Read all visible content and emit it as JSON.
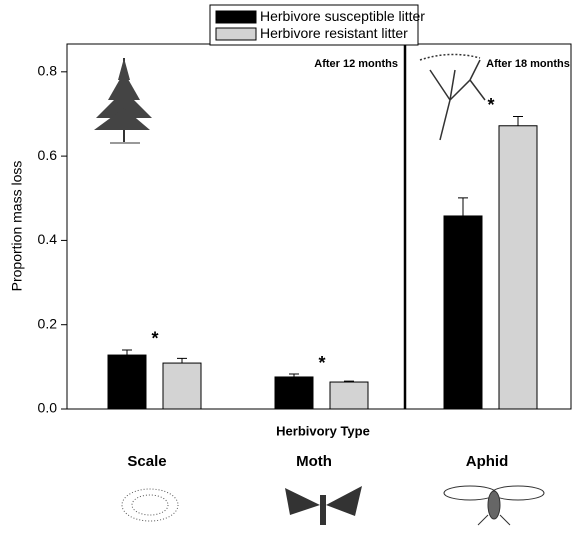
{
  "chart_data": {
    "type": "bar",
    "y_label": "Proportion mass loss",
    "x_label": "Herbivory Type",
    "categories": [
      "Scale",
      "Moth",
      "Aphid"
    ],
    "series": [
      {
        "name": "Herbivore susceptible litter",
        "color": "#000000",
        "values": [
          0.128,
          0.076,
          0.458
        ],
        "errors": [
          0.012,
          0.007,
          0.043
        ]
      },
      {
        "name": "Herbivore resistant litter",
        "color": "#d3d3d3",
        "values": [
          0.109,
          0.064,
          0.672
        ],
        "errors": [
          0.011,
          0.002,
          0.022
        ]
      }
    ],
    "significance_marks": [
      "*",
      "*",
      "*"
    ],
    "annotations": [
      "After 12 months",
      "After 18 months"
    ],
    "ylim": [
      0,
      0.866
    ],
    "yticks": [
      {
        "value": 0,
        "label": "0.0"
      },
      0.2,
      0.4,
      0.6,
      0.8
    ],
    "grid": false
  }
}
